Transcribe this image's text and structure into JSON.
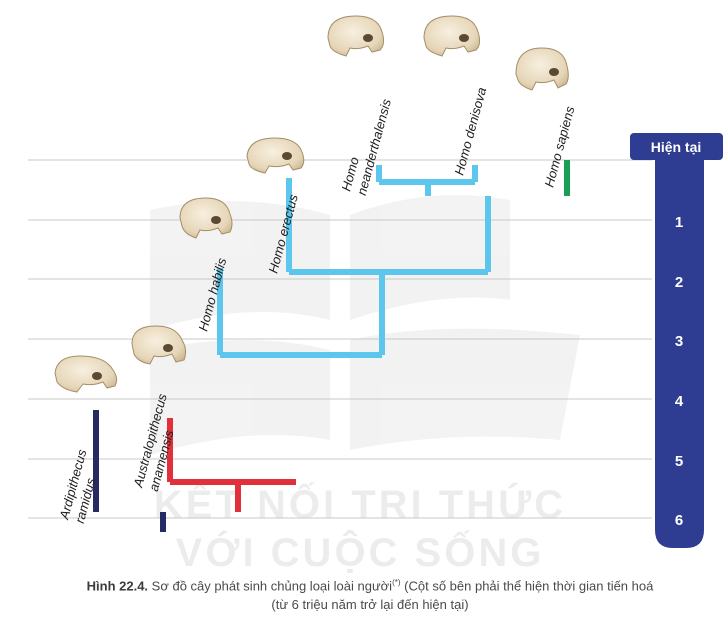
{
  "timeline": {
    "header": "Hiện tại",
    "ticks": [
      "1",
      "2",
      "3",
      "4",
      "5",
      "6"
    ],
    "bar_color": "#2e3d91"
  },
  "species": {
    "ardipithecus": [
      "Ardipithecus",
      "ramidus"
    ],
    "australopithecus": [
      "Australopithecus",
      "anamensis"
    ],
    "habilis": "Homo habilis",
    "erectus": "Homo erectus",
    "neanderthalensis": [
      "Homo",
      "neanderthalensis"
    ],
    "denisova": "Homo denisova",
    "sapiens": "Homo sapiens"
  },
  "watermark": [
    "KẾT NỐI TRI THỨC",
    "VỚI CUỘC SỐNG"
  ],
  "caption": {
    "label": "Hình 22.4.",
    "text_a": " Sơ đồ cây phát sinh chủng loại loài người",
    "footnote": "(*)",
    "text_b": " (Cột số bên phải thể hiện thời gian tiến hoá",
    "line2": "(từ 6 triệu năm trở lại đến hiện tại)"
  },
  "colors": {
    "navy": "#262b63",
    "red": "#e0303c",
    "light_blue": "#5cc6ec",
    "green": "#1a9e55",
    "grid": "#c8c8c8"
  }
}
